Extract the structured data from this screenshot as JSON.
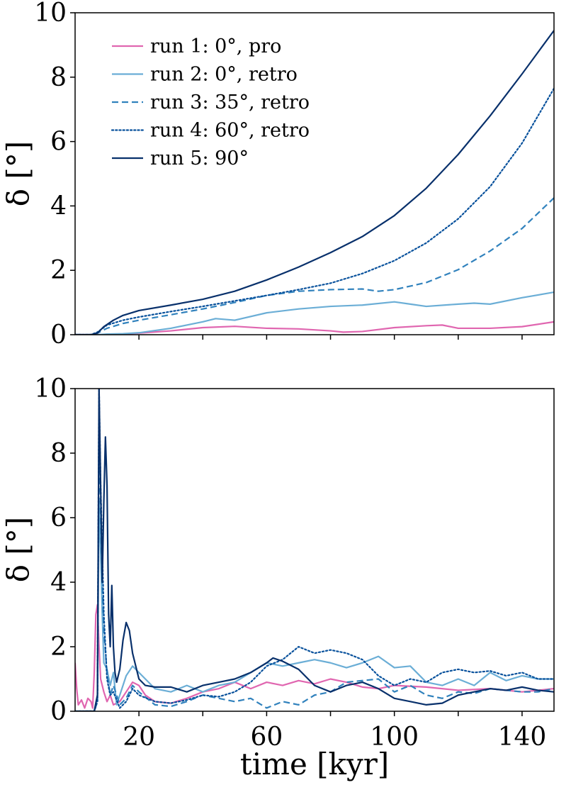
{
  "colors": {
    "run1": "#e066b0",
    "run2": "#6baed6",
    "run3": "#3182bd",
    "run4": "#08519c",
    "run5": "#08306b"
  },
  "chart_data": [
    {
      "id": "top",
      "type": "line",
      "xlabel": "",
      "ylabel": "δ [°]",
      "xlim": [
        0,
        150
      ],
      "ylim": [
        0,
        10
      ],
      "xticks": [
        20,
        40,
        60,
        80,
        100,
        120,
        140
      ],
      "xtick_labels_visible": false,
      "yticks": [
        0,
        2,
        4,
        6,
        8,
        10
      ],
      "legend": {
        "position": "top-left"
      },
      "series": [
        {
          "name": "run 1: 0°, pro",
          "key": "run1",
          "style": "solid",
          "x": [
            0,
            5,
            7,
            10,
            15,
            20,
            30,
            40,
            50,
            60,
            70,
            80,
            84,
            90,
            100,
            110,
            115,
            120,
            130,
            140,
            150
          ],
          "y": [
            0,
            0,
            0,
            0.01,
            0.02,
            0.05,
            0.12,
            0.22,
            0.26,
            0.2,
            0.18,
            0.12,
            0.08,
            0.1,
            0.22,
            0.28,
            0.3,
            0.2,
            0.2,
            0.25,
            0.4
          ]
        },
        {
          "name": "run 2: 0°, retro",
          "key": "run2",
          "style": "solid",
          "x": [
            0,
            5,
            7,
            10,
            15,
            20,
            30,
            40,
            44,
            50,
            60,
            70,
            80,
            90,
            100,
            105,
            110,
            120,
            125,
            130,
            140,
            150
          ],
          "y": [
            0,
            0,
            0,
            0.02,
            0.03,
            0.06,
            0.2,
            0.4,
            0.5,
            0.45,
            0.68,
            0.8,
            0.88,
            0.92,
            1.02,
            0.95,
            0.88,
            0.95,
            0.98,
            0.95,
            1.15,
            1.32
          ]
        },
        {
          "name": "run 3: 35°, retro",
          "key": "run3",
          "style": "dashed",
          "x": [
            0,
            5,
            7,
            10,
            15,
            20,
            30,
            40,
            50,
            60,
            70,
            80,
            90,
            95,
            100,
            110,
            120,
            130,
            140,
            150
          ],
          "y": [
            0,
            0,
            0.05,
            0.2,
            0.35,
            0.45,
            0.62,
            0.8,
            1.0,
            1.22,
            1.35,
            1.4,
            1.42,
            1.35,
            1.4,
            1.62,
            2.02,
            2.6,
            3.3,
            4.25
          ]
        },
        {
          "name": "run 4: 60°, retro",
          "key": "run4",
          "style": "dotted",
          "x": [
            0,
            5,
            7,
            10,
            15,
            20,
            30,
            40,
            50,
            60,
            70,
            80,
            90,
            100,
            110,
            120,
            130,
            140,
            150
          ],
          "y": [
            0,
            0,
            0.08,
            0.3,
            0.45,
            0.55,
            0.72,
            0.88,
            1.05,
            1.22,
            1.4,
            1.6,
            1.9,
            2.3,
            2.85,
            3.6,
            4.6,
            5.95,
            7.65
          ]
        },
        {
          "name": "run 5: 90°",
          "key": "run5",
          "style": "solid",
          "x": [
            0,
            5,
            7,
            9,
            12,
            15,
            20,
            30,
            40,
            50,
            60,
            70,
            80,
            90,
            100,
            110,
            120,
            130,
            140,
            150
          ],
          "y": [
            0,
            0,
            0.05,
            0.25,
            0.45,
            0.6,
            0.75,
            0.92,
            1.1,
            1.35,
            1.7,
            2.1,
            2.55,
            3.05,
            3.7,
            4.55,
            5.6,
            6.8,
            8.1,
            9.45
          ]
        }
      ]
    },
    {
      "id": "bottom",
      "type": "line",
      "xlabel": "time [kyr]",
      "ylabel": "δ [°]",
      "xlim": [
        0,
        150
      ],
      "ylim": [
        0,
        10
      ],
      "xticks": [
        20,
        40,
        60,
        80,
        100,
        120,
        140
      ],
      "xtick_labels": [
        "20",
        "",
        "60",
        "",
        "100",
        "",
        "140"
      ],
      "xtick_labels_visible": true,
      "yticks": [
        0,
        2,
        4,
        6,
        8,
        10
      ],
      "series": [
        {
          "name": "run 1: 0°, pro",
          "key": "run1",
          "style": "solid",
          "x": [
            0,
            0.5,
            1,
            2,
            3,
            4,
            5,
            5.5,
            6,
            6.5,
            7,
            7.5,
            8,
            9,
            10,
            11,
            12,
            14,
            16,
            18,
            20,
            22,
            25,
            30,
            35,
            40,
            45,
            50,
            55,
            60,
            65,
            70,
            75,
            80,
            85,
            90,
            95,
            100,
            110,
            120,
            130,
            140,
            150
          ],
          "y": [
            1.5,
            0.7,
            0.2,
            0.35,
            0.1,
            0.4,
            0.3,
            0.1,
            1.2,
            3.0,
            3.3,
            2.0,
            1.0,
            0.6,
            0.3,
            0.5,
            0.2,
            0.3,
            0.6,
            0.9,
            0.8,
            0.5,
            0.3,
            0.25,
            0.4,
            0.6,
            0.7,
            0.9,
            0.7,
            0.9,
            0.8,
            0.95,
            0.85,
            1.0,
            0.9,
            0.75,
            0.7,
            0.8,
            0.75,
            0.65,
            0.7,
            0.6,
            0.7
          ]
        },
        {
          "name": "run 2: 0°, retro",
          "key": "run2",
          "style": "solid",
          "x": [
            0,
            6,
            7,
            7.5,
            8,
            8.5,
            9,
            10,
            11,
            12,
            13,
            14,
            16,
            18,
            20,
            25,
            30,
            35,
            40,
            45,
            50,
            55,
            60,
            65,
            70,
            75,
            80,
            85,
            90,
            95,
            100,
            105,
            110,
            115,
            120,
            125,
            130,
            135,
            140,
            145,
            150
          ],
          "y": [
            0,
            0,
            0.5,
            6.5,
            5.0,
            3.0,
            1.5,
            1.3,
            0.8,
            1.2,
            0.2,
            0.5,
            1.1,
            1.4,
            1.2,
            0.7,
            0.6,
            0.8,
            0.6,
            0.8,
            0.9,
            1.2,
            1.5,
            1.4,
            1.5,
            1.6,
            1.5,
            1.35,
            1.5,
            1.7,
            1.35,
            1.4,
            0.9,
            0.8,
            1.0,
            0.8,
            1.2,
            0.95,
            1.1,
            1.0,
            1.0
          ]
        },
        {
          "name": "run 3: 35°, retro",
          "key": "run3",
          "style": "dashed",
          "x": [
            0,
            6,
            7,
            7.5,
            8,
            8.5,
            9,
            10,
            11,
            12,
            14,
            16,
            18,
            20,
            25,
            30,
            35,
            40,
            45,
            50,
            55,
            60,
            65,
            70,
            75,
            80,
            85,
            90,
            95,
            100,
            105,
            110,
            115,
            120,
            125,
            130,
            135,
            140,
            145,
            150
          ],
          "y": [
            0,
            0,
            0.3,
            9.0,
            6.0,
            4.0,
            2.5,
            1.2,
            0.5,
            0.8,
            0.2,
            0.4,
            0.8,
            0.6,
            0.2,
            0.15,
            0.3,
            0.5,
            0.4,
            0.3,
            0.4,
            0.1,
            0.3,
            0.2,
            0.5,
            0.6,
            0.9,
            0.95,
            1.0,
            0.6,
            0.8,
            0.5,
            0.4,
            0.6,
            0.55,
            0.7,
            0.65,
            0.6,
            0.6,
            0.7
          ]
        },
        {
          "name": "run 4: 60°, retro",
          "key": "run4",
          "style": "dotted",
          "x": [
            0,
            6,
            7,
            7.5,
            8,
            8.5,
            9,
            10,
            11,
            12,
            14,
            16,
            18,
            20,
            25,
            30,
            35,
            40,
            45,
            50,
            55,
            60,
            65,
            70,
            75,
            80,
            85,
            90,
            95,
            100,
            105,
            110,
            115,
            120,
            125,
            130,
            135,
            140,
            145,
            150
          ],
          "y": [
            0,
            0,
            0.3,
            10.0,
            7.0,
            5.0,
            3.0,
            1.0,
            0.5,
            0.6,
            0.1,
            0.3,
            0.7,
            0.5,
            0.3,
            0.25,
            0.35,
            0.5,
            0.45,
            0.6,
            0.9,
            1.4,
            1.6,
            2.0,
            1.8,
            1.9,
            1.8,
            1.6,
            1.1,
            0.8,
            1.0,
            0.9,
            1.2,
            1.3,
            1.2,
            1.25,
            1.1,
            1.2,
            1.0,
            1.0
          ]
        },
        {
          "name": "run 5: 90°",
          "key": "run5",
          "style": "solid",
          "x": [
            0,
            6,
            7,
            7.5,
            8,
            8.5,
            9,
            9.5,
            10,
            10.5,
            11,
            11.5,
            12,
            12.5,
            13,
            14,
            15,
            16,
            17,
            18,
            20,
            22,
            25,
            30,
            35,
            40,
            45,
            50,
            55,
            60,
            62,
            65,
            70,
            75,
            80,
            85,
            90,
            95,
            100,
            105,
            110,
            115,
            120,
            125,
            130,
            135,
            140,
            145,
            150
          ],
          "y": [
            0,
            0,
            0.5,
            10.0,
            7.0,
            4.0,
            6.5,
            8.5,
            7.0,
            3.0,
            2.0,
            3.9,
            2.0,
            1.2,
            0.9,
            1.3,
            2.2,
            2.75,
            2.5,
            1.8,
            1.0,
            0.8,
            0.75,
            0.75,
            0.6,
            0.8,
            0.9,
            1.0,
            1.2,
            1.5,
            1.65,
            1.55,
            1.3,
            0.8,
            0.6,
            0.8,
            0.9,
            0.7,
            0.4,
            0.3,
            0.2,
            0.25,
            0.5,
            0.6,
            0.7,
            0.65,
            0.75,
            0.65,
            0.6
          ]
        }
      ]
    }
  ]
}
